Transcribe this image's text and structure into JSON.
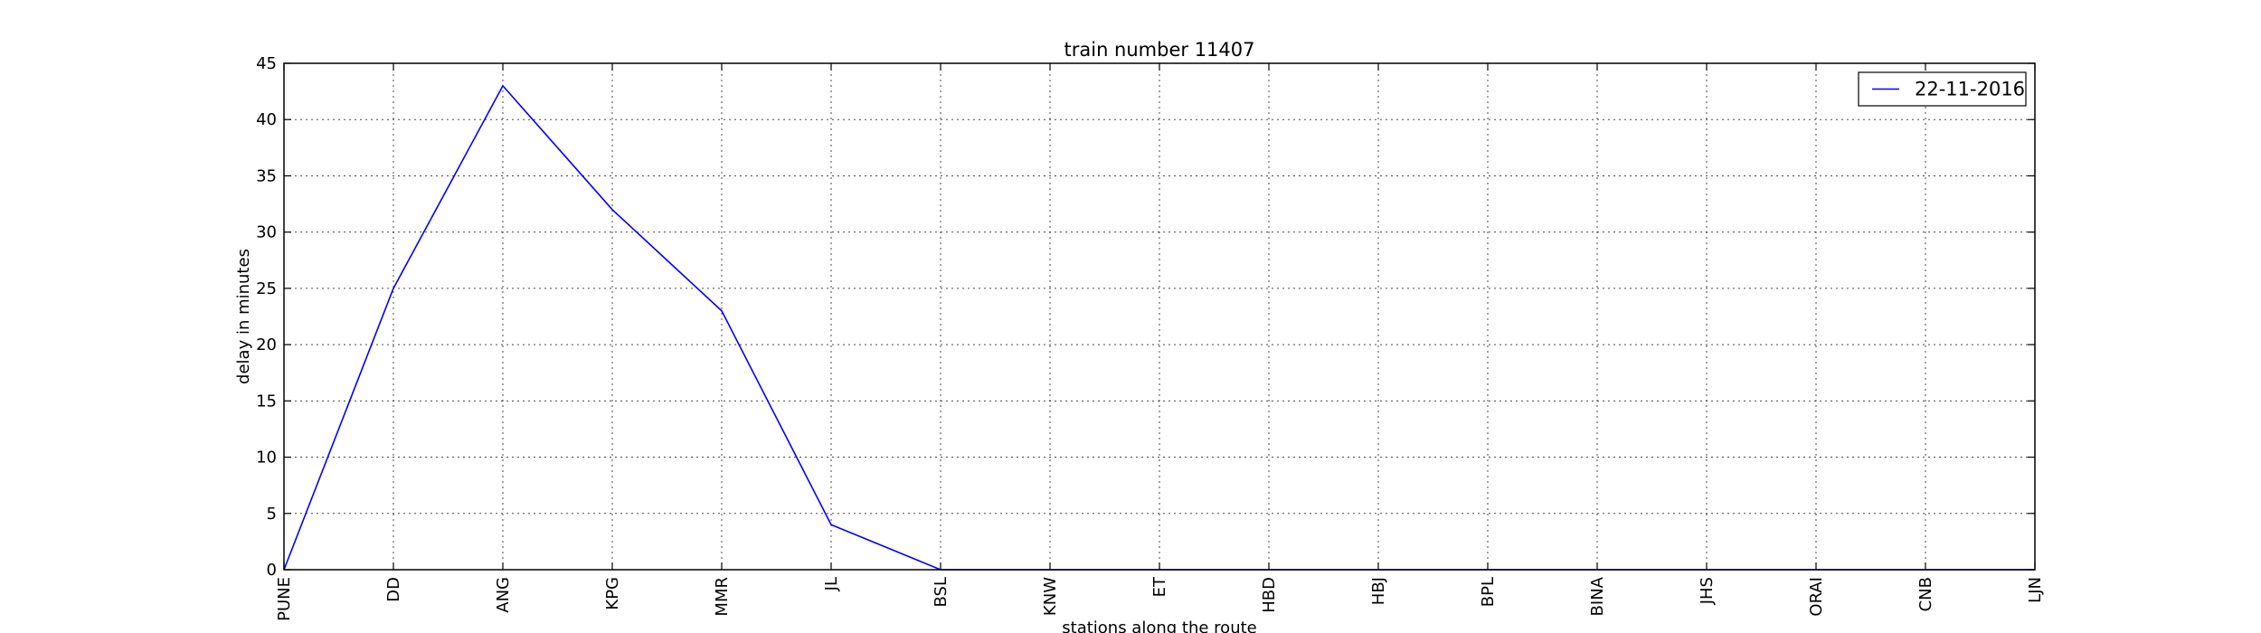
{
  "chart_data": {
    "type": "line",
    "title": "train number 11407",
    "xlabel": "stations along the route",
    "ylabel": "delay in minutes",
    "categories": [
      "PUNE",
      "DD",
      "ANG",
      "KPG",
      "MMR",
      "JL",
      "BSL",
      "KNW",
      "ET",
      "HBD",
      "HBJ",
      "BPL",
      "BINA",
      "JHS",
      "ORAI",
      "CNB",
      "LJN"
    ],
    "series": [
      {
        "name": "22-11-2016",
        "color": "#0000ff",
        "values": [
          0,
          25,
          43,
          32,
          23,
          4,
          0,
          0,
          0,
          0,
          0,
          0,
          0,
          0,
          0,
          0,
          0
        ]
      }
    ],
    "ylim": [
      0,
      45
    ],
    "yticks": [
      0,
      5,
      10,
      15,
      20,
      25,
      30,
      35,
      40,
      45
    ],
    "grid": true,
    "legend_position": "top-right"
  }
}
